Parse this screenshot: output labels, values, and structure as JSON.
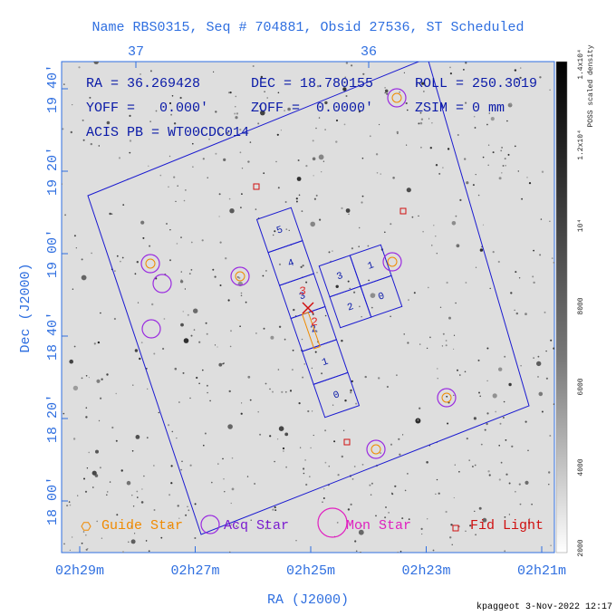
{
  "header": {
    "title": "Name RBS0315, Seq # 704881, Obsid 27536, ST Scheduled"
  },
  "info": {
    "ra": "RA = 36.269428",
    "dec": "DEC = 18.780155",
    "roll": "ROLL = 250.3019",
    "yoff": "YOFF =   0.000'",
    "zoff": "ZOFF =  0.0000'",
    "zsim": "ZSIM = 0 mm",
    "acis_pb": "ACIS PB = WT00CDC014"
  },
  "axes": {
    "x_title": "RA (J2000)",
    "y_title": "Dec (J2000)",
    "x_ticks": [
      "02h29m",
      "02h27m",
      "02h25m",
      "02h23m",
      "02h21m"
    ],
    "top_ticks": [
      "37",
      "36"
    ],
    "y_ticks": [
      "19 40'",
      "19 20'",
      "19 00'",
      "18 40'",
      "18 20'",
      "18 00'"
    ]
  },
  "colorbar": {
    "title": "POSS scaled density",
    "labels": [
      "2000",
      "4000",
      "6000",
      "8000",
      "10⁴",
      "1.2x10⁴",
      "1.4x10⁴"
    ]
  },
  "chips": {
    "acis_s": [
      "5",
      "4",
      "3",
      "2",
      "1",
      "0"
    ],
    "acis_i": [
      "3",
      "1",
      "2",
      "0"
    ],
    "marker": [
      "3",
      "2"
    ]
  },
  "legend": [
    "Guide Star",
    "Acq Star",
    "Mon Star",
    "Fid Light"
  ],
  "footer": "kpaggeot  3-Nov-2022 12:17"
}
